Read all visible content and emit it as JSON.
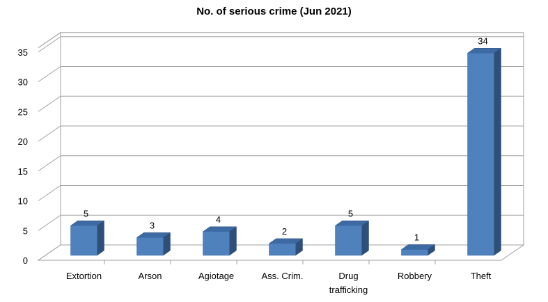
{
  "chart_data": {
    "type": "bar",
    "title": "No. of serious crime (Jun 2021)",
    "categories": [
      "Extortion",
      "Arson",
      "Agiotage",
      "Ass. Crim.",
      "Drug trafficking",
      "Robbery",
      "Theft"
    ],
    "values": [
      5,
      3,
      4,
      2,
      5,
      1,
      34
    ],
    "data_labels": [
      "5",
      "3",
      "4",
      "2",
      "5",
      "1",
      "34"
    ],
    "ylim": [
      0,
      35
    ],
    "yticks": [
      0,
      5,
      10,
      15,
      20,
      25,
      30,
      35
    ],
    "ytick_labels": [
      "0",
      "5",
      "10",
      "15",
      "20",
      "25",
      "30",
      "35"
    ],
    "grid": true,
    "legend": "none",
    "bar_color": "#4f81bd",
    "xlabel": "",
    "ylabel": ""
  }
}
